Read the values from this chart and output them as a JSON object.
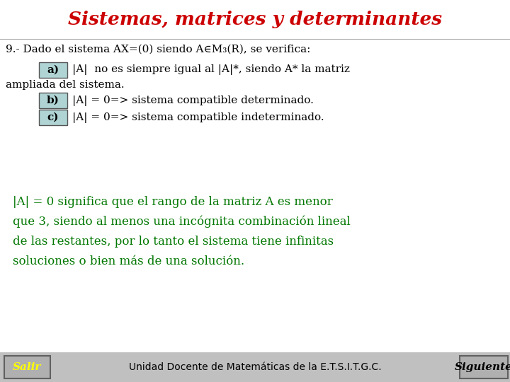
{
  "title": "Sistemas, matrices y determinantes",
  "title_color": "#cc0000",
  "bg_color": "#ffffff",
  "footer_bg": "#c0c0c0",
  "footer_text": "Unidad Docente de Matemáticas de la E.T.S.I.T.G.C.",
  "salir_text": "Salir",
  "salir_color": "#ffff00",
  "siguiente_text": "Siguiente",
  "siguiente_color": "#000000",
  "line1": "9.- Dado el sistema AX=(0) siendo A∈M₃(R), se verifica:",
  "label_a": "a)",
  "label_b": "b)",
  "label_c": "c)",
  "text_a1": "|A|  no es siempre igual al |A|*, siendo A* la matriz",
  "text_a2": "ampliada del sistema.",
  "text_b": "|A| = 0=> sistema compatible determinado.",
  "text_c": "|A| = 0=> sistema compatible indeterminado.",
  "box_color": "#b0d4d4",
  "green_text_color": "#007700",
  "black_text_color": "#000000",
  "para_line1": "|A| = 0 significa que el rango de la matriz A es menor",
  "para_line2": "que 3, siendo al menos una incógnita combinación lineal",
  "para_line3": "de las restantes, por lo tanto el sistema tiene infinitas",
  "para_line4": "soluciones o bien más de una solución."
}
